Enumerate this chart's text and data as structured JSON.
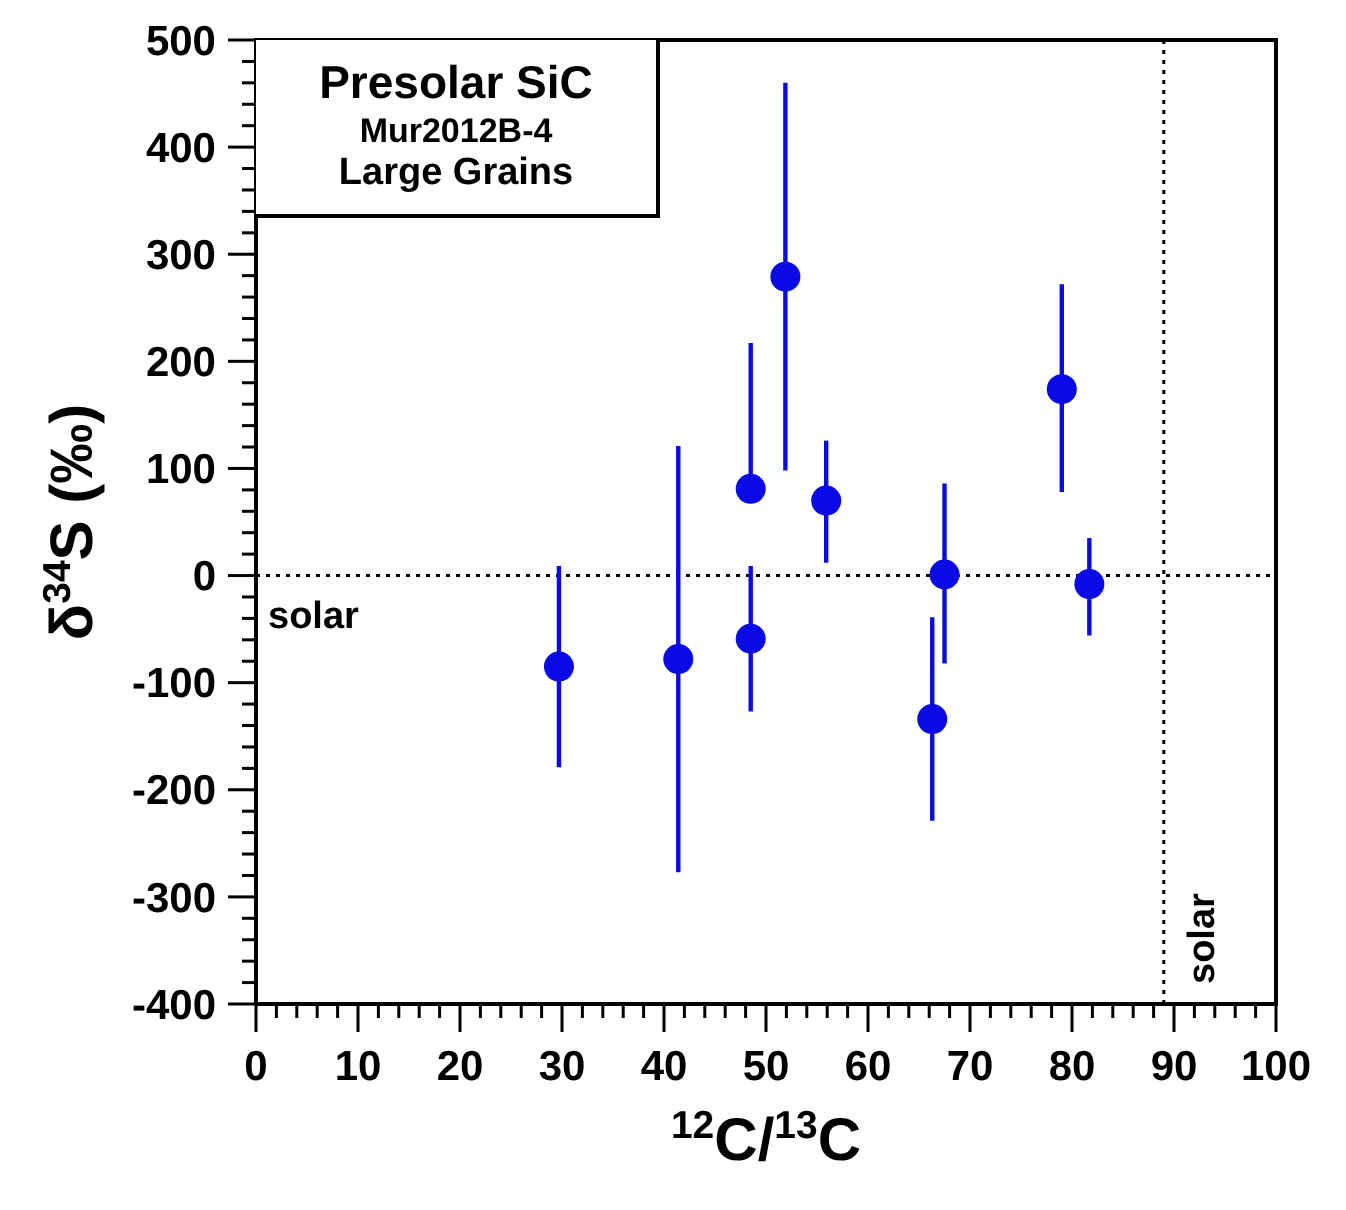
{
  "chart_data": {
    "type": "scatter",
    "title": "Presolar SiC",
    "subtitle": "Mur2012B-4",
    "annotations": [
      "Large Grains"
    ],
    "xlabel": "$^{12}$C/$^{13}$C",
    "ylabel": "δ$^{34}$S (‰)",
    "x": [
      29.7,
      41.4,
      48.5,
      48.5,
      51.9,
      55.9,
      67.5,
      66.3,
      79,
      81.7
    ],
    "series": [
      {
        "color": "#0a0ae6",
        "values": [
          -85,
          -78,
          -59,
          81,
          279,
          70,
          1,
          -134,
          174,
          -8
        ],
        "errors": [
          [
            -179,
            9
          ],
          [
            -277,
            121
          ],
          [
            -127,
            9
          ],
          [
            81,
            217
          ],
          [
            98,
            460
          ],
          [
            12,
            126
          ],
          [
            -82,
            86
          ],
          [
            -229,
            -39
          ],
          [
            78,
            272
          ],
          [
            -56,
            35
          ]
        ]
      }
    ],
    "marker": "circle",
    "xlim": [
      0,
      100
    ],
    "ylim": [
      -400,
      500
    ],
    "xticks": [
      0,
      {
        "value": 2,
        "label": null
      },
      {
        "value": 4,
        "label": null
      },
      {
        "value": 6,
        "label": null
      },
      {
        "value": 8,
        "label": null
      },
      10,
      {
        "value": 12,
        "label": null
      },
      {
        "value": 14,
        "label": null
      },
      {
        "value": 16,
        "label": null
      },
      {
        "value": 18,
        "label": null
      },
      20,
      {
        "value": 22,
        "label": null
      },
      {
        "value": 24,
        "label": null
      },
      {
        "value": 26,
        "label": null
      },
      {
        "value": 28,
        "label": null
      },
      30,
      {
        "value": 32,
        "label": null
      },
      {
        "value": 34,
        "label": null
      },
      {
        "value": 36,
        "label": null
      },
      {
        "value": 38,
        "label": null
      },
      40,
      {
        "value": 42,
        "label": null
      },
      {
        "value": 44,
        "label": null
      },
      {
        "value": 46,
        "label": null
      },
      {
        "value": 48,
        "label": null
      },
      50,
      {
        "value": 52,
        "label": null
      },
      {
        "value": 54,
        "label": null
      },
      {
        "value": 56,
        "label": null
      },
      {
        "value": 58,
        "label": null
      },
      60,
      {
        "value": 62,
        "label": null
      },
      {
        "value": 64,
        "label": null
      },
      {
        "value": 66,
        "label": null
      },
      {
        "value": 68,
        "label": null
      },
      70,
      {
        "value": 72,
        "label": null
      },
      {
        "value": 74,
        "label": null
      },
      {
        "value": 76,
        "label": null
      },
      {
        "value": 78,
        "label": null
      },
      80,
      {
        "value": 82,
        "label": null
      },
      {
        "value": 84,
        "label": null
      },
      {
        "value": 86,
        "label": null
      },
      {
        "value": 88,
        "label": null
      },
      90,
      {
        "value": 92,
        "label": null
      },
      {
        "value": 94,
        "label": null
      },
      {
        "value": 96,
        "label": null
      },
      {
        "value": 98,
        "label": null
      },
      100
    ],
    "yticks": [
      -400,
      {
        "value": -380,
        "label": null
      },
      {
        "value": -360,
        "label": null
      },
      {
        "value": -340,
        "label": null
      },
      {
        "value": -320,
        "label": null
      },
      -300,
      {
        "value": -280,
        "label": null
      },
      {
        "value": -260,
        "label": null
      },
      {
        "value": -240,
        "label": null
      },
      {
        "value": -220,
        "label": null
      },
      -200,
      {
        "value": -180,
        "label": null
      },
      {
        "value": -160,
        "label": null
      },
      {
        "value": -140,
        "label": null
      },
      {
        "value": -120,
        "label": null
      },
      -100,
      {
        "value": -80,
        "label": null
      },
      {
        "value": -60,
        "label": null
      },
      {
        "value": -40,
        "label": null
      },
      {
        "value": -20,
        "label": null
      },
      0,
      {
        "value": 20,
        "label": null
      },
      {
        "value": 40,
        "label": null
      },
      {
        "value": 60,
        "label": null
      },
      {
        "value": 80,
        "label": null
      },
      100,
      {
        "value": 120,
        "label": null
      },
      {
        "value": 140,
        "label": null
      },
      {
        "value": 160,
        "label": null
      },
      {
        "value": 180,
        "label": null
      },
      200,
      {
        "value": 220,
        "label": null
      },
      {
        "value": 240,
        "label": null
      },
      {
        "value": 260,
        "label": null
      },
      {
        "value": 280,
        "label": null
      },
      300,
      {
        "value": 320,
        "label": null
      },
      {
        "value": 340,
        "label": null
      },
      {
        "value": 360,
        "label": null
      },
      {
        "value": 380,
        "label": null
      },
      400,
      {
        "value": 420,
        "label": null
      },
      {
        "value": 440,
        "label": null
      },
      {
        "value": 460,
        "label": null
      },
      {
        "value": 480,
        "label": null
      },
      500
    ],
    "ref_lines": [
      {
        "axis": "y",
        "value": 0,
        "label": "solar",
        "line_style": "dotted",
        "color": "#000000"
      },
      {
        "axis": "x",
        "value": 89,
        "label": "solar",
        "line_style": "dotted",
        "color": "#000000"
      }
    ],
    "line_style": "solid"
  }
}
